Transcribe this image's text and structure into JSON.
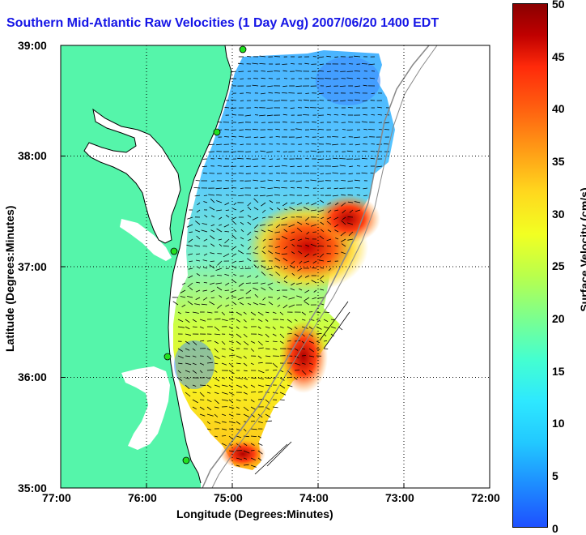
{
  "title": "Southern Mid-Atlantic Raw Velocities (1 Day Avg) 2007/06/20 1400 EDT",
  "x_axis": {
    "label": "Longitude (Degrees:Minutes)",
    "ticks": [
      "77:00",
      "76:00",
      "75:00",
      "74:00",
      "73:00",
      "72:00"
    ]
  },
  "y_axis": {
    "label": "Latitude (Degrees:Minutes)",
    "ticks": [
      "39:00",
      "38:00",
      "37:00",
      "36:00",
      "35:00"
    ]
  },
  "colorbar": {
    "label": "Surface Velocity (cm/s)",
    "ticks": [
      "50",
      "45",
      "40",
      "35",
      "30",
      "25",
      "20",
      "15",
      "10",
      "5",
      "0"
    ],
    "range": [
      0,
      50
    ],
    "colors": {
      "low": "#1e50ff",
      "high": "#8a0000",
      "land": "#55f5aa",
      "title": "#1515e6"
    }
  },
  "map": {
    "lon_range": [
      -77,
      -72
    ],
    "lat_range": [
      35,
      39
    ],
    "grid": true,
    "vector_field": "arrows",
    "station_markers": 5
  }
}
